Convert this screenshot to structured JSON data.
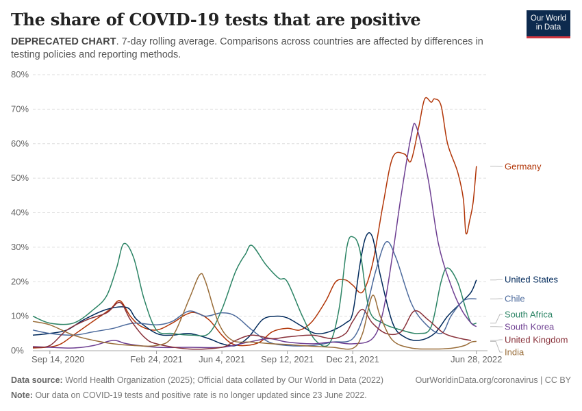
{
  "header": {
    "title": "The share of COVID-19 tests that are positive",
    "subtitle_bold": "DEPRECATED CHART",
    "subtitle_rest": ". 7-day rolling average. Comparisons across countries are affected by differences in testing policies and reporting methods.",
    "logo_line1": "Our World",
    "logo_line2": "in Data"
  },
  "footer": {
    "source_label": "Data source:",
    "source_text": "World Health Organization (2025); Official data collated by Our World in Data (2022)",
    "url": "OurWorldinData.org/coronavirus | CC BY",
    "note_label": "Note:",
    "note_text": "Our data on COVID-19 tests and positive rate is no longer updated since 23 June 2022."
  },
  "colors": {
    "Germany": "#b13507",
    "United States": "#00295b",
    "Chile": "#4c6a9c",
    "South Africa": "#2c8465",
    "South Korea": "#883039",
    "United Kingdom": "#883039",
    "India": "#996d39",
    "South Korea line": "#6d3e91"
  },
  "chart_data": {
    "type": "line",
    "title": "The share of COVID-19 tests that are positive",
    "ylim": [
      0,
      80
    ],
    "yticks": [
      0,
      10,
      20,
      30,
      40,
      50,
      60,
      70,
      80
    ],
    "ytick_labels": [
      "0%",
      "10%",
      "20%",
      "30%",
      "40%",
      "50%",
      "60%",
      "70%",
      "80%"
    ],
    "xlim": [
      "2020-08-19",
      "2022-07-15"
    ],
    "xticks": [
      "2020-09-14",
      "2021-02-24",
      "2021-06-04",
      "2021-09-12",
      "2021-12-21",
      "2022-06-28"
    ],
    "xtick_labels": [
      "Sep 14, 2020",
      "Feb 24, 2021",
      "Jun 4, 2021",
      "Sep 12, 2021",
      "Dec 21, 2021",
      "Jun 28, 2022"
    ],
    "grid": true,
    "legend": "right-end labels",
    "series": [
      {
        "name": "Germany",
        "color": "#b13507",
        "points": [
          [
            "2020-08-19",
            0.8
          ],
          [
            "2020-09-14",
            1.1
          ],
          [
            "2020-10-01",
            2
          ],
          [
            "2020-10-20",
            4.5
          ],
          [
            "2020-11-15",
            8
          ],
          [
            "2020-12-15",
            12
          ],
          [
            "2020-12-30",
            14.5
          ],
          [
            "2021-01-15",
            10
          ],
          [
            "2021-02-01",
            7
          ],
          [
            "2021-02-24",
            6
          ],
          [
            "2021-03-20",
            8
          ],
          [
            "2021-04-10",
            10.5
          ],
          [
            "2021-04-25",
            11
          ],
          [
            "2021-05-15",
            9
          ],
          [
            "2021-06-04",
            4.5
          ],
          [
            "2021-06-20",
            2
          ],
          [
            "2021-07-10",
            1.5
          ],
          [
            "2021-08-01",
            2.5
          ],
          [
            "2021-08-20",
            5.5
          ],
          [
            "2021-09-12",
            6.5
          ],
          [
            "2021-10-01",
            6
          ],
          [
            "2021-10-20",
            8.5
          ],
          [
            "2021-11-10",
            14.5
          ],
          [
            "2021-11-25",
            20
          ],
          [
            "2021-12-10",
            20.5
          ],
          [
            "2021-12-21",
            19
          ],
          [
            "2022-01-05",
            17
          ],
          [
            "2022-01-20",
            25
          ],
          [
            "2022-02-05",
            42
          ],
          [
            "2022-02-20",
            56
          ],
          [
            "2022-03-10",
            57
          ],
          [
            "2022-03-20",
            55
          ],
          [
            "2022-04-01",
            65
          ],
          [
            "2022-04-10",
            73
          ],
          [
            "2022-04-20",
            72
          ],
          [
            "2022-04-25",
            73
          ],
          [
            "2022-05-05",
            71
          ],
          [
            "2022-05-15",
            60
          ],
          [
            "2022-05-30",
            52
          ],
          [
            "2022-06-08",
            44
          ],
          [
            "2022-06-12",
            34
          ],
          [
            "2022-06-18",
            38
          ],
          [
            "2022-06-23",
            43
          ],
          [
            "2022-06-28",
            53.5
          ]
        ]
      },
      {
        "name": "United States",
        "color": "#00295b",
        "points": [
          [
            "2020-08-19",
            4.5
          ],
          [
            "2020-09-14",
            5
          ],
          [
            "2020-10-10",
            6
          ],
          [
            "2020-11-05",
            9
          ],
          [
            "2020-12-10",
            12
          ],
          [
            "2021-01-10",
            12.5
          ],
          [
            "2021-01-25",
            9
          ],
          [
            "2021-02-24",
            5
          ],
          [
            "2021-03-20",
            4.5
          ],
          [
            "2021-04-15",
            5
          ],
          [
            "2021-05-15",
            3.5
          ],
          [
            "2021-06-04",
            2
          ],
          [
            "2021-06-25",
            1.5
          ],
          [
            "2021-07-15",
            4
          ],
          [
            "2021-08-05",
            9
          ],
          [
            "2021-08-25",
            10
          ],
          [
            "2021-09-12",
            9.5
          ],
          [
            "2021-10-05",
            7
          ],
          [
            "2021-10-25",
            5
          ],
          [
            "2021-11-15",
            5.5
          ],
          [
            "2021-12-10",
            8
          ],
          [
            "2021-12-21",
            11
          ],
          [
            "2022-01-01",
            25
          ],
          [
            "2022-01-10",
            33
          ],
          [
            "2022-01-20",
            33
          ],
          [
            "2022-02-01",
            22
          ],
          [
            "2022-02-20",
            8
          ],
          [
            "2022-03-10",
            4
          ],
          [
            "2022-04-01",
            3
          ],
          [
            "2022-04-25",
            5
          ],
          [
            "2022-05-15",
            10
          ],
          [
            "2022-06-05",
            14
          ],
          [
            "2022-06-20",
            17
          ],
          [
            "2022-06-28",
            20.5
          ]
        ]
      },
      {
        "name": "Chile",
        "color": "#4c6a9c",
        "points": [
          [
            "2020-08-19",
            6
          ],
          [
            "2020-09-14",
            5
          ],
          [
            "2020-10-20",
            4.5
          ],
          [
            "2020-11-20",
            5.5
          ],
          [
            "2020-12-20",
            6.5
          ],
          [
            "2021-01-20",
            8
          ],
          [
            "2021-02-24",
            7.5
          ],
          [
            "2021-03-20",
            8.5
          ],
          [
            "2021-04-15",
            11.5
          ],
          [
            "2021-05-10",
            10
          ],
          [
            "2021-06-04",
            11
          ],
          [
            "2021-06-25",
            10
          ],
          [
            "2021-07-20",
            6
          ],
          [
            "2021-08-15",
            2.5
          ],
          [
            "2021-09-12",
            1.5
          ],
          [
            "2021-10-20",
            1.5
          ],
          [
            "2021-11-20",
            2.5
          ],
          [
            "2021-12-21",
            3.5
          ],
          [
            "2022-01-10",
            12
          ],
          [
            "2022-01-25",
            23
          ],
          [
            "2022-02-10",
            31.5
          ],
          [
            "2022-02-25",
            27
          ],
          [
            "2022-03-20",
            14
          ],
          [
            "2022-04-10",
            8
          ],
          [
            "2022-05-05",
            5
          ],
          [
            "2022-05-20",
            10
          ],
          [
            "2022-06-05",
            14
          ],
          [
            "2022-06-15",
            15
          ],
          [
            "2022-06-28",
            15
          ]
        ]
      },
      {
        "name": "South Africa",
        "color": "#2c8465",
        "points": [
          [
            "2020-08-19",
            10
          ],
          [
            "2020-09-14",
            8
          ],
          [
            "2020-10-20",
            8
          ],
          [
            "2020-11-20",
            12
          ],
          [
            "2020-12-10",
            16
          ],
          [
            "2020-12-25",
            24
          ],
          [
            "2021-01-05",
            31
          ],
          [
            "2021-01-20",
            27
          ],
          [
            "2021-02-05",
            15
          ],
          [
            "2021-02-24",
            6
          ],
          [
            "2021-03-20",
            5
          ],
          [
            "2021-04-20",
            4.5
          ],
          [
            "2021-05-15",
            5
          ],
          [
            "2021-06-04",
            12
          ],
          [
            "2021-06-25",
            23
          ],
          [
            "2021-07-10",
            28
          ],
          [
            "2021-07-20",
            30.5
          ],
          [
            "2021-08-10",
            25
          ],
          [
            "2021-08-30",
            21
          ],
          [
            "2021-09-12",
            20
          ],
          [
            "2021-10-05",
            10
          ],
          [
            "2021-10-25",
            3
          ],
          [
            "2021-11-15",
            2
          ],
          [
            "2021-11-30",
            12
          ],
          [
            "2021-12-12",
            30
          ],
          [
            "2021-12-21",
            33
          ],
          [
            "2022-01-01",
            29
          ],
          [
            "2022-01-15",
            12
          ],
          [
            "2022-02-05",
            8
          ],
          [
            "2022-03-05",
            6
          ],
          [
            "2022-04-01",
            5
          ],
          [
            "2022-04-20",
            7
          ],
          [
            "2022-05-05",
            20
          ],
          [
            "2022-05-15",
            24
          ],
          [
            "2022-05-30",
            20
          ],
          [
            "2022-06-12",
            12
          ],
          [
            "2022-06-20",
            8
          ],
          [
            "2022-06-28",
            8
          ]
        ]
      },
      {
        "name": "South Korea",
        "color": "#6d3e91",
        "points": [
          [
            "2020-08-19",
            1.2
          ],
          [
            "2020-09-14",
            1
          ],
          [
            "2020-10-20",
            0.8
          ],
          [
            "2020-11-20",
            1.5
          ],
          [
            "2020-12-20",
            3
          ],
          [
            "2021-01-10",
            2
          ],
          [
            "2021-02-24",
            1
          ],
          [
            "2021-04-15",
            1
          ],
          [
            "2021-06-04",
            1
          ],
          [
            "2021-07-15",
            2.5
          ],
          [
            "2021-08-15",
            3.5
          ],
          [
            "2021-09-12",
            2.5
          ],
          [
            "2021-10-20",
            2
          ],
          [
            "2021-11-20",
            2.5
          ],
          [
            "2021-12-21",
            2
          ],
          [
            "2022-01-20",
            3.5
          ],
          [
            "2022-02-05",
            11
          ],
          [
            "2022-02-20",
            28
          ],
          [
            "2022-03-05",
            45
          ],
          [
            "2022-03-20",
            62
          ],
          [
            "2022-03-28",
            65
          ],
          [
            "2022-04-15",
            50
          ],
          [
            "2022-05-01",
            31
          ],
          [
            "2022-05-20",
            19
          ],
          [
            "2022-06-05",
            12
          ],
          [
            "2022-06-20",
            8
          ],
          [
            "2022-06-28",
            7
          ]
        ]
      },
      {
        "name": "United Kingdom",
        "color": "#883039",
        "points": [
          [
            "2020-08-19",
            1
          ],
          [
            "2020-09-14",
            1.5
          ],
          [
            "2020-10-10",
            6
          ],
          [
            "2020-11-10",
            9
          ],
          [
            "2020-12-10",
            11
          ],
          [
            "2020-12-30",
            14
          ],
          [
            "2021-01-15",
            9
          ],
          [
            "2021-02-05",
            4
          ],
          [
            "2021-02-24",
            2
          ],
          [
            "2021-04-15",
            0.5
          ],
          [
            "2021-06-04",
            1
          ],
          [
            "2021-06-25",
            3
          ],
          [
            "2021-07-20",
            4.5
          ],
          [
            "2021-08-20",
            3.5
          ],
          [
            "2021-09-12",
            4
          ],
          [
            "2021-10-20",
            4.5
          ],
          [
            "2021-11-20",
            3.5
          ],
          [
            "2021-12-10",
            5
          ],
          [
            "2021-12-21",
            8.5
          ],
          [
            "2022-01-05",
            12
          ],
          [
            "2022-01-20",
            8
          ],
          [
            "2022-02-10",
            5
          ],
          [
            "2022-03-05",
            5.5
          ],
          [
            "2022-03-25",
            11.5
          ],
          [
            "2022-04-15",
            9
          ],
          [
            "2022-05-10",
            5
          ],
          [
            "2022-06-05",
            3.5
          ],
          [
            "2022-06-20",
            3
          ]
        ]
      },
      {
        "name": "India",
        "color": "#996d39",
        "points": [
          [
            "2020-08-19",
            8.5
          ],
          [
            "2020-09-14",
            7.5
          ],
          [
            "2020-10-20",
            4.5
          ],
          [
            "2020-11-20",
            3
          ],
          [
            "2020-12-20",
            2
          ],
          [
            "2021-01-20",
            1.5
          ],
          [
            "2021-02-24",
            1.5
          ],
          [
            "2021-03-20",
            4
          ],
          [
            "2021-04-15",
            15
          ],
          [
            "2021-05-01",
            22
          ],
          [
            "2021-05-10",
            20
          ],
          [
            "2021-05-30",
            8
          ],
          [
            "2021-06-20",
            3
          ],
          [
            "2021-07-20",
            2.5
          ],
          [
            "2021-08-20",
            2
          ],
          [
            "2021-09-12",
            1.8
          ],
          [
            "2021-10-20",
            1.3
          ],
          [
            "2021-11-20",
            1
          ],
          [
            "2021-12-21",
            0.7
          ],
          [
            "2022-01-05",
            5
          ],
          [
            "2022-01-20",
            16
          ],
          [
            "2022-02-01",
            10
          ],
          [
            "2022-02-20",
            3
          ],
          [
            "2022-03-20",
            0.8
          ],
          [
            "2022-04-20",
            0.5
          ],
          [
            "2022-05-20",
            0.7
          ],
          [
            "2022-06-10",
            1.5
          ],
          [
            "2022-06-20",
            2.5
          ],
          [
            "2022-06-28",
            2.7
          ]
        ]
      }
    ],
    "end_labels": [
      {
        "name": "Germany",
        "value": 53.5,
        "color": "#b13507"
      },
      {
        "name": "United States",
        "value": 20.5,
        "color": "#00295b"
      },
      {
        "name": "Chile",
        "value": 15,
        "color": "#4c6a9c"
      },
      {
        "name": "South Africa",
        "value": 8,
        "color": "#2c8465"
      },
      {
        "name": "South Korea",
        "value": 7,
        "color": "#6d3e91"
      },
      {
        "name": "United Kingdom",
        "value": 3,
        "color": "#883039"
      },
      {
        "name": "India",
        "value": 2.7,
        "color": "#996d39"
      }
    ]
  }
}
